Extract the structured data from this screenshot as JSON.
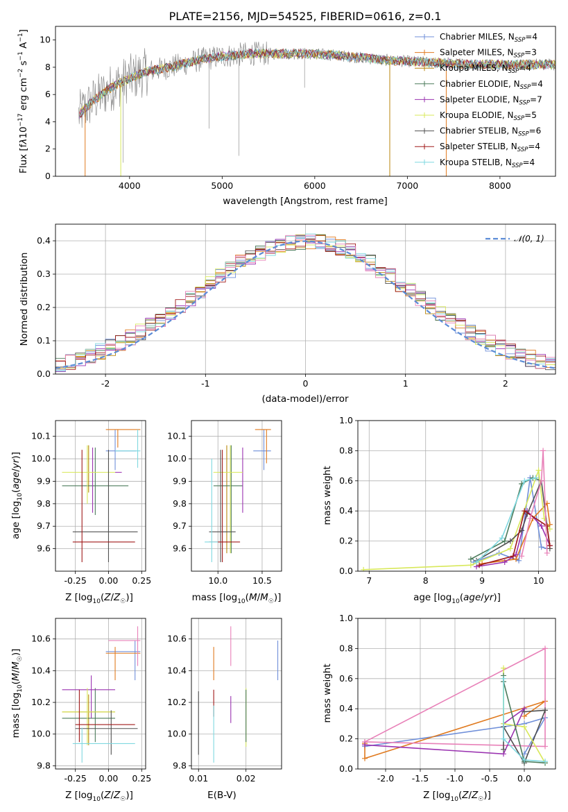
{
  "colors": {
    "chabrier_miles": "#6f8fd9",
    "salpeter_miles": "#e07a1f",
    "kroupa_miles": "#b8860b",
    "chabrier_elodie": "#4a7a5a",
    "salpeter_elodie": "#9a32b0",
    "kroupa_elodie": "#d8e85a",
    "chabrier_stelib": "#505050",
    "salpeter_stelib": "#a01818",
    "kroupa_stelib": "#7fd8e0",
    "pink": "#e880b8",
    "normal_curve": "#5b8bd6",
    "data_gray": "#808080"
  },
  "chart_data": [
    {
      "id": "spectrum",
      "type": "line",
      "title": "PLATE=2156, MJD=54525, FIBERID=0616, z=0.1",
      "xlabel": "wavelength [Angstrom, rest frame]",
      "ylabel": "Flux [f_λ10^-17 erg cm^-2 s^-1 A^-1]",
      "xlim": [
        3200,
        8600
      ],
      "ylim": [
        0,
        11
      ],
      "xticks": [
        4000,
        5000,
        6000,
        7000,
        8000
      ],
      "yticks": [
        0,
        2,
        4,
        6,
        8,
        10
      ],
      "legend_position": "right",
      "legend": [
        "Chabrier MILES, N_SSP=4",
        "Salpeter MILES, N_SSP=3",
        "Kroupa MILES, N_SSP=4",
        "Chabrier ELODIE, N_SSP=4",
        "Salpeter ELODIE, N_SSP=7",
        "Kroupa ELODIE, N_SSP=5",
        "Chabrier STELIB, N_SSP=6",
        "Salpeter STELIB, N_SSP=4",
        "Kroupa STELIB, N_SSP=4"
      ],
      "continuum": {
        "x": [
          3450,
          3600,
          3800,
          4000,
          4200,
          4500,
          4800,
          5000,
          5300,
          5600,
          5900,
          6200,
          6500,
          6800,
          7100,
          7400,
          7700,
          8000,
          8300,
          8600
        ],
        "y": [
          4.5,
          5.5,
          6.5,
          7.2,
          7.7,
          8.1,
          8.6,
          8.8,
          9.0,
          9.0,
          9.0,
          8.9,
          8.7,
          8.5,
          8.4,
          8.3,
          8.2,
          8.2,
          8.2,
          8.2
        ]
      }
    },
    {
      "id": "residuals",
      "type": "line",
      "xlabel": "(data-model)/error",
      "ylabel": "Normed distribution",
      "xlim": [
        -2.5,
        2.5
      ],
      "ylim": [
        0,
        0.45
      ],
      "xticks": [
        -2,
        -1,
        0,
        1,
        2
      ],
      "yticks": [
        0.0,
        0.1,
        0.2,
        0.3,
        0.4
      ],
      "grid": true,
      "legend_position": "top-right",
      "legend": [
        "𝒩(0, 1)"
      ],
      "bin_width": 0.1
    },
    {
      "id": "z_age",
      "type": "scatter",
      "xlabel": "Z [log₁₀(Z/Z☉)]",
      "ylabel": "age  [log₁₀(age/yr)]",
      "xlim": [
        -0.4,
        0.28
      ],
      "ylim": [
        9.5,
        10.17
      ],
      "xticks": [
        -0.25,
        0.0,
        0.25
      ],
      "yticks": [
        9.6,
        9.7,
        9.8,
        9.9,
        10.0,
        10.1
      ],
      "grid": true,
      "points": [
        {
          "x": 0.05,
          "x0": -0.02,
          "x1": 0.21,
          "y": 10.035,
          "y0": 9.95,
          "y1": 10.13,
          "c": "chabrier_miles"
        },
        {
          "x": 0.07,
          "x0": -0.02,
          "x1": 0.24,
          "y": 10.13,
          "y0": 10.05,
          "y1": 10.13,
          "c": "salpeter_miles"
        },
        {
          "x": -0.15,
          "x0": -0.35,
          "x1": 0.05,
          "y": 9.94,
          "y0": 9.85,
          "y1": 10.06,
          "c": "kroupa_miles"
        },
        {
          "x": -0.1,
          "x0": -0.35,
          "x1": 0.15,
          "y": 9.88,
          "y0": 9.75,
          "y1": 10.05,
          "c": "chabrier_elodie"
        },
        {
          "x": -0.12,
          "x0": -0.35,
          "x1": 0.1,
          "y": 9.94,
          "y0": 9.76,
          "y1": 10.05,
          "c": "salpeter_elodie"
        },
        {
          "x": -0.16,
          "x0": -0.35,
          "x1": 0.05,
          "y": 9.94,
          "y0": 9.8,
          "y1": 10.06,
          "c": "kroupa_elodie"
        },
        {
          "x": 0.0,
          "x0": -0.27,
          "x1": 0.22,
          "y": 9.675,
          "y0": 9.54,
          "y1": 10.04,
          "c": "chabrier_stelib"
        },
        {
          "x": -0.2,
          "x0": -0.27,
          "x1": 0.2,
          "y": 9.63,
          "y0": 9.54,
          "y1": 10.04,
          "c": "salpeter_stelib"
        },
        {
          "x": 0.22,
          "x0": 0.05,
          "x1": 0.24,
          "y": 10.035,
          "y0": 9.96,
          "y1": 10.13,
          "c": "kroupa_stelib"
        }
      ]
    },
    {
      "id": "mass_age",
      "type": "scatter",
      "xlabel": "mass [log₁₀(M/M☉)]",
      "ylabel": "",
      "xlim": [
        9.7,
        10.72
      ],
      "ylim": [
        9.5,
        10.17
      ],
      "xticks": [
        10.0,
        10.5
      ],
      "yticks": [
        9.6,
        9.7,
        9.8,
        9.9,
        10.0,
        10.1
      ],
      "grid": true,
      "points": [
        {
          "x": 10.52,
          "x0": 10.4,
          "x1": 10.6,
          "y": 10.035,
          "y0": 9.95,
          "y1": 10.13,
          "c": "chabrier_miles"
        },
        {
          "x": 10.55,
          "x0": 10.42,
          "x1": 10.6,
          "y": 10.13,
          "y0": 9.98,
          "y1": 10.13,
          "c": "salpeter_miles"
        },
        {
          "x": 10.1,
          "x0": 9.95,
          "x1": 10.25,
          "y": 9.94,
          "y0": 9.58,
          "y1": 10.06,
          "c": "kroupa_miles"
        },
        {
          "x": 10.15,
          "x0": 9.95,
          "x1": 10.28,
          "y": 9.88,
          "y0": 9.58,
          "y1": 10.06,
          "c": "chabrier_elodie"
        },
        {
          "x": 10.28,
          "x0": 10.05,
          "x1": 10.28,
          "y": 9.94,
          "y0": 9.76,
          "y1": 10.05,
          "c": "salpeter_elodie"
        },
        {
          "x": 10.14,
          "x0": 9.95,
          "x1": 10.28,
          "y": 9.94,
          "y0": 9.58,
          "y1": 10.06,
          "c": "kroupa_elodie"
        },
        {
          "x": 10.03,
          "x0": 9.9,
          "x1": 10.2,
          "y": 9.675,
          "y0": 9.54,
          "y1": 10.04,
          "c": "chabrier_stelib"
        },
        {
          "x": 10.05,
          "x0": 9.9,
          "x1": 10.25,
          "y": 9.63,
          "y0": 9.54,
          "y1": 10.04,
          "c": "salpeter_stelib"
        },
        {
          "x": 9.93,
          "x0": 9.85,
          "x1": 10.0,
          "y": 9.63,
          "y0": 9.54,
          "y1": 10.0,
          "c": "kroupa_stelib"
        }
      ]
    },
    {
      "id": "weight_age",
      "type": "line",
      "xlabel": "age  [log₁₀(age/yr)]",
      "ylabel": "mass weight",
      "xlim": [
        6.8,
        10.3
      ],
      "ylim": [
        0,
        1.0
      ],
      "xticks": [
        7,
        8,
        9,
        10
      ],
      "yticks": [
        0.0,
        0.2,
        0.4,
        0.6,
        0.8,
        1.0
      ],
      "grid": true,
      "series": [
        {
          "c": "chabrier_miles",
          "x": [
            8.85,
            9.3,
            9.65,
            9.85,
            10.05,
            10.15
          ],
          "y": [
            0.06,
            0.12,
            0.07,
            0.62,
            0.16,
            0.15
          ]
        },
        {
          "c": "salpeter_miles",
          "x": [
            9.0,
            9.6,
            9.9,
            10.15,
            10.2
          ],
          "y": [
            0.05,
            0.08,
            0.35,
            0.45,
            0.31
          ]
        },
        {
          "c": "chabrier_elodie",
          "x": [
            8.8,
            9.4,
            9.7,
            9.9,
            10.05
          ],
          "y": [
            0.08,
            0.2,
            0.58,
            0.62,
            0.6
          ]
        },
        {
          "c": "salpeter_elodie",
          "x": [
            8.9,
            9.4,
            9.6,
            9.8,
            10.05,
            10.2
          ],
          "y": [
            0.03,
            0.06,
            0.11,
            0.4,
            0.3,
            0.17
          ]
        },
        {
          "c": "kroupa_elodie",
          "x": [
            6.9,
            8.8,
            9.5,
            10.0,
            10.1,
            10.2
          ],
          "y": [
            0.01,
            0.04,
            0.15,
            0.67,
            0.35,
            0.28
          ]
        },
        {
          "c": "chabrier_stelib",
          "x": [
            8.9,
            9.5,
            9.7,
            9.8,
            10.05,
            10.2
          ],
          "y": [
            0.07,
            0.2,
            0.27,
            0.38,
            0.6,
            0.15
          ]
        },
        {
          "c": "salpeter_stelib",
          "x": [
            8.95,
            9.55,
            9.75,
            10.15,
            10.2
          ],
          "y": [
            0.04,
            0.1,
            0.4,
            0.3,
            0.17
          ]
        },
        {
          "c": "kroupa_stelib",
          "x": [
            8.9,
            9.35,
            9.75,
            9.95
          ],
          "y": [
            0.06,
            0.22,
            0.6,
            0.62
          ]
        },
        {
          "c": "pink",
          "x": [
            9.7,
            9.85,
            10.05,
            10.08,
            10.15
          ],
          "y": [
            0.1,
            0.35,
            0.6,
            0.8,
            0.12
          ]
        }
      ]
    },
    {
      "id": "z_mass",
      "type": "scatter",
      "xlabel": "Z [log₁₀(Z/Z☉)]",
      "ylabel": "mass [log₁₀(M/M☉)]",
      "xlim": [
        -0.4,
        0.28
      ],
      "ylim": [
        9.78,
        10.73
      ],
      "xticks": [
        -0.25,
        0.0,
        0.25
      ],
      "yticks": [
        9.8,
        10.0,
        10.2,
        10.4,
        10.6
      ],
      "grid": true,
      "points": [
        {
          "x": 0.2,
          "x0": -0.02,
          "x1": 0.24,
          "y": 10.52,
          "y0": 10.34,
          "y1": 10.59,
          "c": "chabrier_miles"
        },
        {
          "x": 0.05,
          "x0": -0.02,
          "x1": 0.24,
          "y": 10.51,
          "y0": 10.34,
          "y1": 10.55,
          "c": "salpeter_miles"
        },
        {
          "x": -0.15,
          "x0": -0.35,
          "x1": 0.05,
          "y": 10.14,
          "y0": 9.93,
          "y1": 10.25,
          "c": "kroupa_miles"
        },
        {
          "x": -0.1,
          "x0": -0.35,
          "x1": 0.05,
          "y": 10.1,
          "y0": 9.95,
          "y1": 10.29,
          "c": "chabrier_elodie"
        },
        {
          "x": -0.13,
          "x0": -0.35,
          "x1": 0.05,
          "y": 10.28,
          "y0": 10.1,
          "y1": 10.37,
          "c": "salpeter_elodie"
        },
        {
          "x": -0.16,
          "x0": -0.35,
          "x1": 0.05,
          "y": 10.14,
          "y0": 9.93,
          "y1": 10.29,
          "c": "kroupa_elodie"
        },
        {
          "x": 0.02,
          "x0": -0.25,
          "x1": 0.22,
          "y": 10.035,
          "y0": 9.87,
          "y1": 10.15,
          "c": "chabrier_stelib"
        },
        {
          "x": -0.22,
          "x0": -0.25,
          "x1": 0.2,
          "y": 10.06,
          "y0": 9.95,
          "y1": 10.28,
          "c": "salpeter_stelib"
        },
        {
          "x": -0.2,
          "x0": -0.27,
          "x1": 0.2,
          "y": 9.94,
          "y0": 9.82,
          "y1": 10.04,
          "c": "kroupa_stelib"
        },
        {
          "x": 0.22,
          "x0": 0.0,
          "x1": 0.24,
          "y": 10.59,
          "y0": 10.43,
          "y1": 10.68,
          "c": "pink"
        }
      ]
    },
    {
      "id": "ebv_mass",
      "type": "scatter",
      "xlabel": "E(B-V)",
      "ylabel": "",
      "xlim": [
        0.0085,
        0.0275
      ],
      "ylim": [
        9.78,
        10.73
      ],
      "xticks": [
        0.01,
        0.02
      ],
      "yticks": [
        9.8,
        10.0,
        10.2,
        10.4,
        10.6
      ],
      "grid": true,
      "points": [
        {
          "x": 0.0267,
          "y0": 10.34,
          "y1": 10.59,
          "c": "chabrier_miles"
        },
        {
          "x": 0.0132,
          "y0": 10.34,
          "y1": 10.55,
          "c": "salpeter_miles"
        },
        {
          "x": 0.0168,
          "y0": 10.43,
          "y1": 10.68,
          "c": "pink"
        },
        {
          "x": 0.02,
          "y0": 9.92,
          "y1": 10.29,
          "c": "kroupa_elodie"
        },
        {
          "x": 0.02,
          "y0": 9.95,
          "y1": 10.28,
          "c": "chabrier_elodie"
        },
        {
          "x": 0.0168,
          "y0": 10.07,
          "y1": 10.24,
          "c": "salpeter_elodie"
        },
        {
          "x": 0.0132,
          "y0": 10.11,
          "y1": 10.28,
          "c": "salpeter_stelib"
        },
        {
          "x": 0.0132,
          "y0": 9.82,
          "y1": 10.18,
          "c": "kroupa_stelib"
        },
        {
          "x": 0.01,
          "y0": 9.87,
          "y1": 10.27,
          "c": "chabrier_stelib"
        }
      ]
    },
    {
      "id": "weight_z",
      "type": "line",
      "xlabel": "Z [log₁₀(Z/Z☉)]",
      "ylabel": "mass weight",
      "xlim": [
        -2.4,
        0.45
      ],
      "ylim": [
        0,
        1.0
      ],
      "xticks": [
        -2.0,
        -1.5,
        -1.0,
        -0.5,
        0.0
      ],
      "yticks": [
        0.0,
        0.2,
        0.4,
        0.6,
        0.8,
        1.0
      ],
      "grid": true,
      "series": [
        {
          "c": "chabrier_miles",
          "x": [
            -2.3,
            0.0,
            0.3,
            0.0
          ],
          "y": [
            0.15,
            0.3,
            0.34,
            0.1
          ]
        },
        {
          "c": "salpeter_miles",
          "x": [
            -2.3,
            -2.3,
            0.3,
            0.0
          ],
          "y": [
            0.17,
            0.07,
            0.45,
            0.35
          ]
        },
        {
          "c": "pink",
          "x": [
            -2.3,
            0.3,
            0.3,
            -2.3
          ],
          "y": [
            0.18,
            0.8,
            0.15,
            0.18
          ]
        },
        {
          "c": "salpeter_elodie",
          "x": [
            -2.3,
            -0.3,
            0.0,
            -0.3
          ],
          "y": [
            0.16,
            0.1,
            0.4,
            0.3
          ]
        },
        {
          "c": "chabrier_stelib",
          "x": [
            -0.3,
            -0.3,
            0.0,
            0.3,
            0.0
          ],
          "y": [
            0.13,
            0.28,
            0.04,
            0.39,
            0.38
          ]
        },
        {
          "c": "kroupa_elodie",
          "x": [
            -0.3,
            -0.3,
            0.0,
            0.3
          ],
          "y": [
            0.67,
            0.3,
            0.28,
            0.04
          ]
        },
        {
          "c": "chabrier_elodie",
          "x": [
            -0.3,
            -0.3,
            0.0,
            0.3
          ],
          "y": [
            0.62,
            0.58,
            0.05,
            0.04
          ]
        },
        {
          "c": "kroupa_stelib",
          "x": [
            -0.3,
            -0.3,
            0.0,
            0.3
          ],
          "y": [
            0.6,
            0.2,
            0.06,
            0.05
          ]
        }
      ]
    }
  ]
}
